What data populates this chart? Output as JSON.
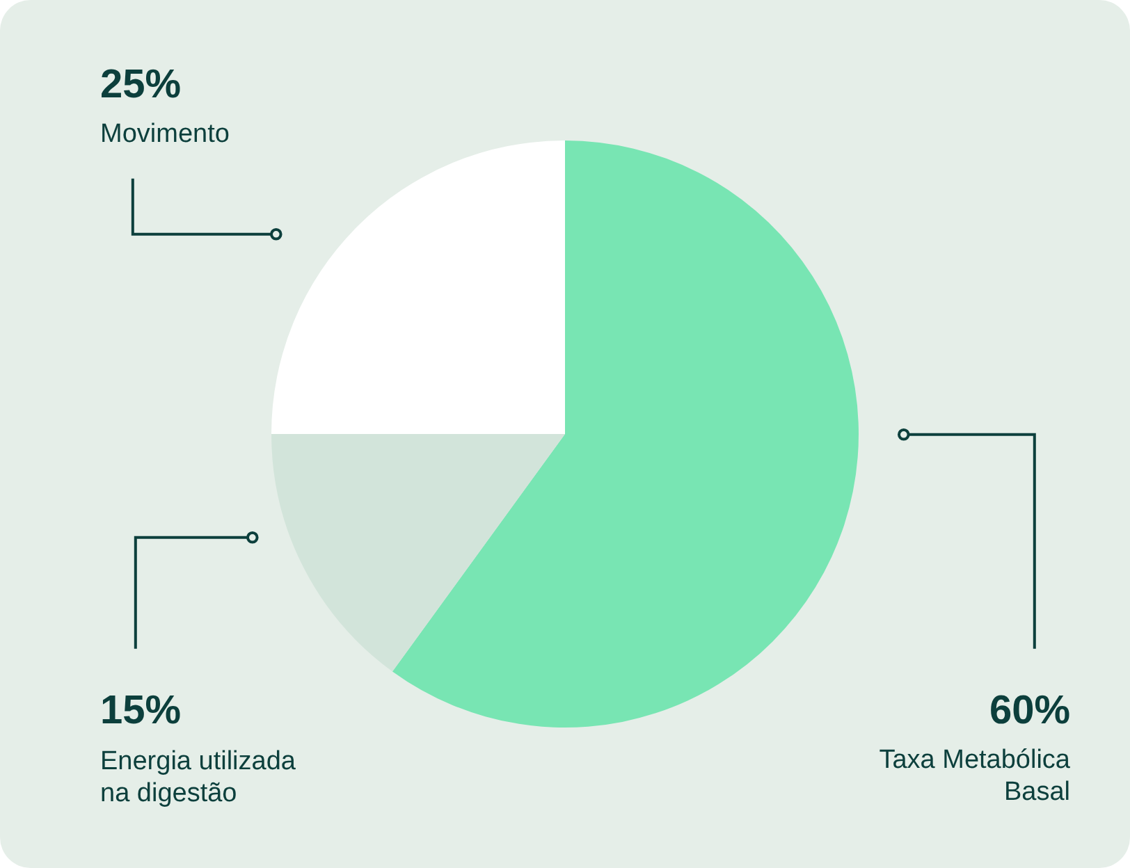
{
  "chart_data": {
    "type": "pie",
    "categories": [
      "Taxa Metabólica Basal",
      "Energia utilizada na digestão",
      "Movimento"
    ],
    "values": [
      60,
      15,
      25
    ],
    "colors": [
      "#78e5b3",
      "#d2e4da",
      "#ffffff"
    ],
    "value_labels": [
      "60%",
      "15%",
      "25%"
    ]
  }
}
